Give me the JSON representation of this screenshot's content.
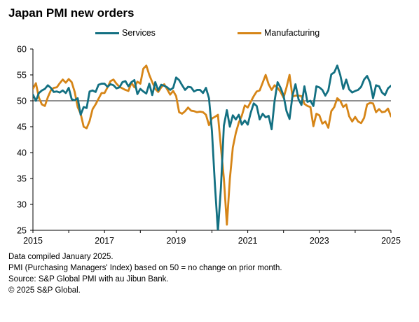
{
  "title": "Japan PMI new orders",
  "notes": [
    "Data compiled January 2025.",
    "PMI (Purchasing Managers' Index) based on 50 = no change on prior month.",
    "Source: S&P Global PMI with au Jibun Bank.",
    "© 2025 S&P Global."
  ],
  "chart_data": {
    "type": "line",
    "title": "Japan PMI new orders",
    "xlabel": "",
    "ylabel": "",
    "ylim": [
      25,
      60
    ],
    "yticks": [
      25,
      30,
      35,
      40,
      45,
      50,
      55,
      60
    ],
    "xlim": [
      2015.0,
      2025.0
    ],
    "xticks": [
      2015,
      2017,
      2019,
      2021,
      2023,
      2025
    ],
    "reference_line": 50,
    "grid": false,
    "legend_position": "top",
    "series": [
      {
        "name": "Services",
        "color": "#137082",
        "x": [
          2015.0,
          2015.083,
          2015.167,
          2015.25,
          2015.333,
          2015.417,
          2015.5,
          2015.583,
          2015.667,
          2015.75,
          2015.833,
          2015.917,
          2016.0,
          2016.083,
          2016.167,
          2016.25,
          2016.333,
          2016.417,
          2016.5,
          2016.583,
          2016.667,
          2016.75,
          2016.833,
          2016.917,
          2017.0,
          2017.083,
          2017.167,
          2017.25,
          2017.333,
          2017.417,
          2017.5,
          2017.583,
          2017.667,
          2017.75,
          2017.833,
          2017.917,
          2018.0,
          2018.083,
          2018.167,
          2018.25,
          2018.333,
          2018.417,
          2018.5,
          2018.583,
          2018.667,
          2018.75,
          2018.833,
          2018.917,
          2019.0,
          2019.083,
          2019.167,
          2019.25,
          2019.333,
          2019.417,
          2019.5,
          2019.583,
          2019.667,
          2019.75,
          2019.833,
          2019.917,
          2020.0,
          2020.083,
          2020.167,
          2020.25,
          2020.333,
          2020.417,
          2020.5,
          2020.583,
          2020.667,
          2020.75,
          2020.833,
          2020.917,
          2021.0,
          2021.083,
          2021.167,
          2021.25,
          2021.333,
          2021.417,
          2021.5,
          2021.583,
          2021.667,
          2021.75,
          2021.833,
          2021.917,
          2022.0,
          2022.083,
          2022.167,
          2022.25,
          2022.333,
          2022.417,
          2022.5,
          2022.583,
          2022.667,
          2022.75,
          2022.833,
          2022.917,
          2023.0,
          2023.083,
          2023.167,
          2023.25,
          2023.333,
          2023.417,
          2023.5,
          2023.583,
          2023.667,
          2023.75,
          2023.833,
          2023.917,
          2024.0,
          2024.083,
          2024.167,
          2024.25,
          2024.333,
          2024.417,
          2024.5,
          2024.583,
          2024.667,
          2024.75,
          2024.833,
          2024.917,
          2025.0
        ],
        "values": [
          51.2,
          50.0,
          51.5,
          52.0,
          52.3,
          53.0,
          52.5,
          51.7,
          51.8,
          51.6,
          52.0,
          51.5,
          52.5,
          50.3,
          50.1,
          50.5,
          47.3,
          48.8,
          48.6,
          51.8,
          52.0,
          51.7,
          53.1,
          53.3,
          53.3,
          52.7,
          53.2,
          53.0,
          52.4,
          52.6,
          53.6,
          53.8,
          52.8,
          53.6,
          54.0,
          51.3,
          52.3,
          51.8,
          51.4,
          53.3,
          51.1,
          53.6,
          52.0,
          53.1,
          52.9,
          52.6,
          52.1,
          52.5,
          54.5,
          54.0,
          53.0,
          52.1,
          52.7,
          52.6,
          51.8,
          52.1,
          52.1,
          51.5,
          52.5,
          50.5,
          44.1,
          33.8,
          24.8,
          33.2,
          45.2,
          48.2,
          45.0,
          47.2,
          46.4,
          47.3,
          45.4,
          46.2,
          45.4,
          47.7,
          49.5,
          49.0,
          46.4,
          47.5,
          46.8,
          47.1,
          44.5,
          50.0,
          53.6,
          52.5,
          51.0,
          48.0,
          46.5,
          51.0,
          53.2,
          50.3,
          49.2,
          52.8,
          49.8,
          50.0,
          49.0,
          52.8,
          52.6,
          52.1,
          51.0,
          52.0,
          55.1,
          55.5,
          56.8,
          55.0,
          52.3,
          54.1,
          52.2,
          51.6,
          51.9,
          52.1,
          52.7,
          54.1,
          54.8,
          53.5,
          50.5,
          53.0,
          52.8,
          51.6,
          51.1,
          52.4,
          52.9
        ]
      },
      {
        "name": "Manufacturing",
        "color": "#d68517",
        "x": [
          2015.0,
          2015.083,
          2015.167,
          2015.25,
          2015.333,
          2015.417,
          2015.5,
          2015.583,
          2015.667,
          2015.75,
          2015.833,
          2015.917,
          2016.0,
          2016.083,
          2016.167,
          2016.25,
          2016.333,
          2016.417,
          2016.5,
          2016.583,
          2016.667,
          2016.75,
          2016.833,
          2016.917,
          2017.0,
          2017.083,
          2017.167,
          2017.25,
          2017.333,
          2017.417,
          2017.5,
          2017.583,
          2017.667,
          2017.75,
          2017.833,
          2017.917,
          2018.0,
          2018.083,
          2018.167,
          2018.25,
          2018.333,
          2018.417,
          2018.5,
          2018.583,
          2018.667,
          2018.75,
          2018.833,
          2018.917,
          2019.0,
          2019.083,
          2019.167,
          2019.25,
          2019.333,
          2019.417,
          2019.5,
          2019.583,
          2019.667,
          2019.75,
          2019.833,
          2019.917,
          2020.0,
          2020.083,
          2020.167,
          2020.25,
          2020.333,
          2020.417,
          2020.5,
          2020.583,
          2020.667,
          2020.75,
          2020.833,
          2020.917,
          2021.0,
          2021.083,
          2021.167,
          2021.25,
          2021.333,
          2021.417,
          2021.5,
          2021.583,
          2021.667,
          2021.75,
          2021.833,
          2021.917,
          2022.0,
          2022.083,
          2022.167,
          2022.25,
          2022.333,
          2022.417,
          2022.5,
          2022.583,
          2022.667,
          2022.75,
          2022.833,
          2022.917,
          2023.0,
          2023.083,
          2023.167,
          2023.25,
          2023.333,
          2023.417,
          2023.5,
          2023.583,
          2023.667,
          2023.75,
          2023.833,
          2023.917,
          2024.0,
          2024.083,
          2024.167,
          2024.25,
          2024.333,
          2024.417,
          2024.5,
          2024.583,
          2024.667,
          2024.75,
          2024.833,
          2024.917,
          2025.0
        ],
        "values": [
          52.3,
          53.4,
          50.6,
          49.3,
          49.0,
          50.7,
          52.0,
          52.5,
          52.6,
          53.4,
          54.1,
          53.5,
          54.2,
          53.6,
          51.7,
          48.8,
          47.5,
          45.0,
          44.7,
          46.1,
          48.4,
          49.3,
          50.4,
          51.5,
          51.5,
          52.6,
          53.8,
          54.1,
          53.3,
          52.7,
          52.4,
          52.1,
          51.9,
          53.5,
          52.6,
          53.7,
          53.3,
          56.2,
          56.8,
          55.0,
          53.6,
          52.3,
          51.7,
          52.6,
          53.2,
          52.2,
          51.2,
          51.9,
          50.9,
          47.8,
          47.5,
          48.0,
          48.7,
          48.1,
          48.0,
          47.8,
          47.9,
          47.8,
          47.3,
          45.3,
          46.6,
          46.9,
          47.3,
          41.0,
          35.0,
          26.1,
          34.9,
          41.0,
          43.8,
          45.8,
          47.1,
          49.1,
          48.7,
          49.8,
          50.9,
          51.8,
          52.0,
          53.5,
          55.0,
          53.2,
          52.1,
          53.0,
          52.5,
          51.7,
          50.6,
          52.6,
          55.0,
          50.8,
          51.0,
          51.0,
          50.9,
          49.4,
          49.0,
          48.8,
          45.1,
          47.5,
          47.2,
          45.6,
          46.0,
          44.8,
          48.0,
          48.8,
          50.5,
          50.0,
          48.8,
          49.3,
          47.0,
          46.0,
          46.9,
          46.0,
          45.7,
          46.7,
          49.3,
          49.6,
          49.5,
          47.8,
          48.4,
          47.8,
          47.9,
          48.5,
          47.0
        ]
      }
    ]
  }
}
